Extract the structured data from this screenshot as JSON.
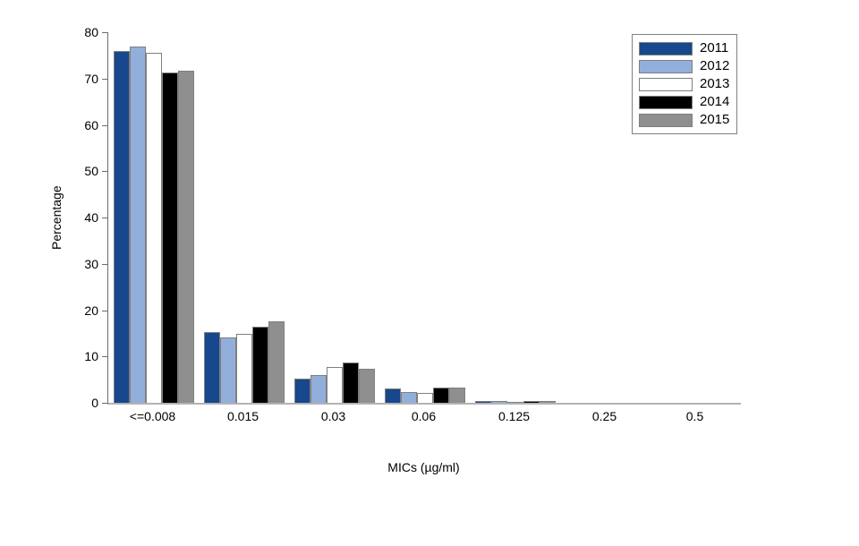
{
  "figure": {
    "background": "#FFFFFF"
  },
  "chart_data": {
    "type": "bar",
    "title": "",
    "xlabel": "MICs (µg/ml)",
    "ylabel": "Percentage",
    "categories": [
      "<=0.008",
      "0.015",
      "0.03",
      "0.06",
      "0.125",
      "0.25",
      "0.5"
    ],
    "series": [
      {
        "name": "2011",
        "color": "#17478C",
        "values": [
          75.9,
          15.2,
          5.3,
          3.1,
          0.3,
          0,
          0
        ]
      },
      {
        "name": "2012",
        "color": "#92AFDB",
        "values": [
          77.0,
          14.2,
          6.0,
          2.4,
          0.3,
          0,
          0
        ]
      },
      {
        "name": "2013",
        "color": "#FFFFFF",
        "values": [
          75.5,
          14.8,
          7.8,
          2.2,
          0.2,
          0,
          0
        ]
      },
      {
        "name": "2014",
        "color": "#000000",
        "values": [
          71.3,
          16.5,
          8.6,
          3.3,
          0.3,
          0,
          0
        ]
      },
      {
        "name": "2015",
        "color": "#8F8F8F",
        "values": [
          71.6,
          17.5,
          7.3,
          3.2,
          0.3,
          0,
          0
        ]
      }
    ],
    "ylim": [
      0,
      80
    ],
    "yticks": [
      0,
      10,
      20,
      30,
      40,
      50,
      60,
      70,
      80
    ],
    "grid": false,
    "legend_position": "top-right",
    "axis_color": "#6B6B6B",
    "baseline_color": "#B3B3B3",
    "bar_border_color": "#7F7F7F"
  }
}
